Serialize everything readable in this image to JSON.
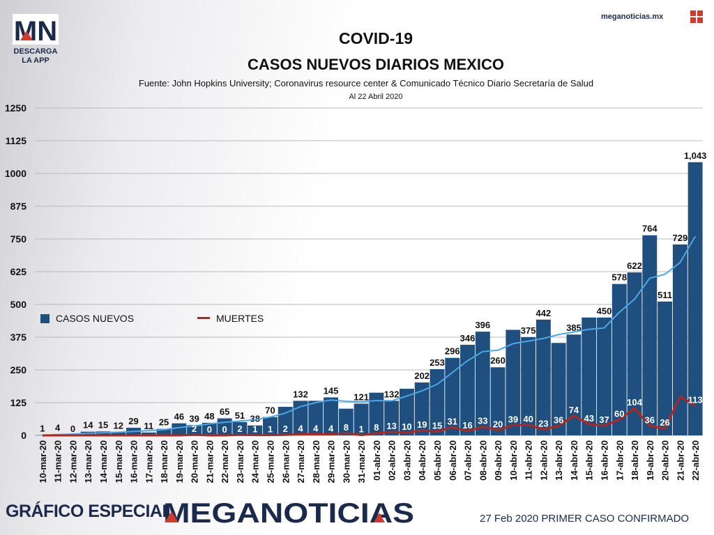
{
  "branding": {
    "logo_text": "MN",
    "logo_cta": "DESCARGA LA APP",
    "site": "meganoticias.mx",
    "footer_left": "GRÁFICO ESPECIAL",
    "footer_brand": "MEGANOTICIAS",
    "footer_right": "27 Feb 2020 PRIMER CASO CONFIRMADO"
  },
  "colors": {
    "bar": "#1e4f7e",
    "deaths_line": "#b3261e",
    "avg_line": "#4aa8e8",
    "brand_navy": "#1a2a4d",
    "brand_red": "#d23a2c"
  },
  "legend": {
    "cases": "CASOS NUEVOS",
    "deaths": "MUERTES"
  },
  "chart_data": {
    "type": "bar",
    "title": "COVID-19",
    "subtitle": "CASOS NUEVOS DIARIOS MEXICO",
    "source": "Fuente: John Hopkins University; Coronavirus resource center & Comunicado Técnico Diario Secretaría de Salud",
    "date_note": "Al 22 Abril 2020",
    "xlabel": "",
    "ylabel": "",
    "ylim": [
      0,
      1250
    ],
    "yticks": [
      0,
      125,
      250,
      375,
      500,
      625,
      750,
      875,
      1000,
      1125,
      1250
    ],
    "grid": true,
    "legend_position": "left",
    "categories": [
      "10-mar-20",
      "11-mar-20",
      "12-mar-20",
      "13-mar-20",
      "14-mar-20",
      "15-mar-20",
      "16-mar-20",
      "17-mar-20",
      "18-mar-20",
      "19-mar-20",
      "20-mar-20",
      "21-mar-20",
      "22-mar-20",
      "23-mar-20",
      "24-mar-20",
      "25-mar-20",
      "26-mar-20",
      "27-mar-20",
      "28-mar-20",
      "29-mar-20",
      "30-mar-20",
      "31-mar-20",
      "01-abr-20",
      "02-abr-20",
      "03-abr-20",
      "04-abr-20",
      "05-abr-20",
      "06-abr-20",
      "07-abr-20",
      "08-abr-20",
      "09-abr-20",
      "10-abr-20",
      "11-abr-20",
      "12-abr-20",
      "13-abr-20",
      "14-abr-20",
      "15-abr-20",
      "16-abr-20",
      "17-abr-20",
      "18-abr-20",
      "19-abr-20",
      "20-abr-20",
      "21-abr-20",
      "22-abr-20"
    ],
    "series": [
      {
        "name": "CASOS NUEVOS",
        "kind": "bar",
        "values": [
          1,
          4,
          0,
          14,
          15,
          12,
          29,
          11,
          25,
          46,
          39,
          48,
          65,
          51,
          38,
          70,
          109,
          132,
          132,
          145,
          102,
          121,
          163,
          132,
          178,
          202,
          253,
          296,
          346,
          396,
          260,
          403,
          375,
          442,
          353,
          385,
          450,
          450,
          578,
          622,
          764,
          511,
          729,
          1043
        ],
        "labels": [
          "1",
          "4",
          "0",
          "14",
          "15",
          "12",
          "29",
          "11",
          "25",
          "46",
          "39",
          "48",
          "65",
          "51",
          "38",
          "70",
          "",
          "132",
          "",
          "145",
          "",
          "121",
          "",
          "132",
          "",
          "202",
          "253",
          "296",
          "346",
          "396",
          "260",
          "",
          "375",
          "442",
          "",
          "385",
          "",
          "450",
          "578",
          "622",
          "764",
          "511",
          "729",
          "1,043"
        ]
      },
      {
        "name": "MUERTES",
        "kind": "line",
        "values": [
          0,
          0,
          0,
          0,
          0,
          0,
          0,
          0,
          0,
          0,
          2,
          0,
          0,
          2,
          1,
          1,
          2,
          4,
          4,
          4,
          8,
          1,
          8,
          13,
          10,
          19,
          15,
          31,
          16,
          33,
          20,
          39,
          40,
          23,
          36,
          74,
          43,
          37,
          60,
          104,
          36,
          26,
          148,
          113
        ],
        "labels": [
          "",
          "",
          "",
          "",
          "",
          "",
          "",
          "",
          "",
          "",
          "2",
          "0",
          "0",
          "2",
          "1",
          "1",
          "2",
          "4",
          "4",
          "4",
          "8",
          "1",
          "8",
          "13",
          "10",
          "19",
          "15",
          "31",
          "16",
          "33",
          "20",
          "39",
          "40",
          "23",
          "36",
          "74",
          "43",
          "37",
          "60",
          "104",
          "36",
          "26",
          "",
          "113"
        ]
      },
      {
        "kind": "line",
        "values": [
          1,
          3,
          5,
          8,
          10,
          12,
          15,
          18,
          22,
          30,
          36,
          44,
          50,
          55,
          60,
          70,
          85,
          110,
          125,
          135,
          130,
          128,
          133,
          132,
          150,
          170,
          195,
          240,
          285,
          320,
          325,
          350,
          360,
          370,
          385,
          395,
          405,
          410,
          470,
          520,
          600,
          615,
          660,
          760
        ]
      }
    ]
  }
}
